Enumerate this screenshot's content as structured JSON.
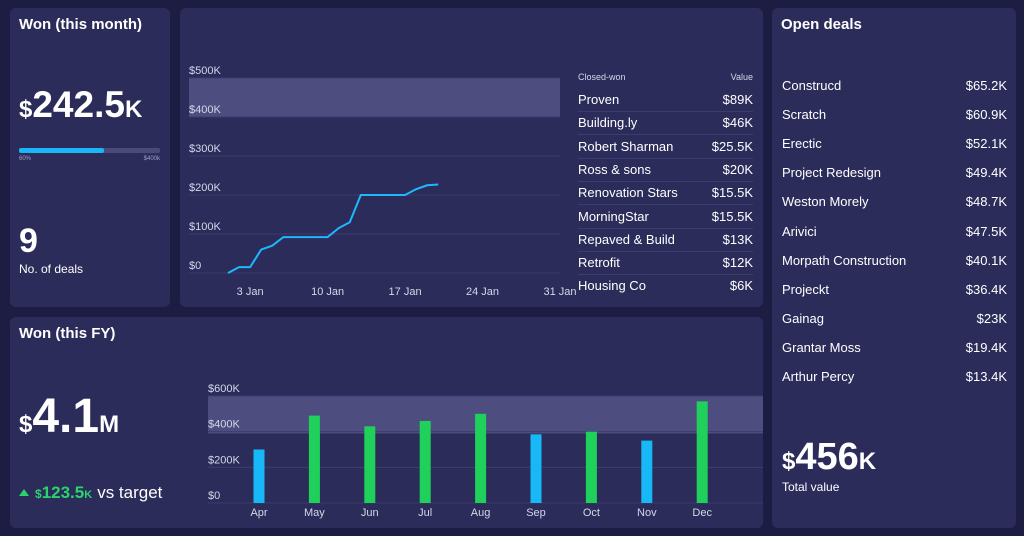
{
  "won_month": {
    "title": "Won (this month)",
    "currency": "$",
    "value": "242.5",
    "suffix": "K",
    "progress_label_left": "60%",
    "progress_label_right": "$400k",
    "progress_fraction": 0.6,
    "deals_count": "9",
    "deals_label": "No. of deals"
  },
  "month_table": {
    "col_name": "Closed-won",
    "col_value": "Value",
    "rows": [
      {
        "name": "Proven",
        "value": "$89K"
      },
      {
        "name": "Building.ly",
        "value": "$46K"
      },
      {
        "name": "Robert Sharman",
        "value": "$25.5K"
      },
      {
        "name": "Ross & sons",
        "value": "$20K"
      },
      {
        "name": "Renovation Stars",
        "value": "$15.5K"
      },
      {
        "name": "MorningStar",
        "value": "$15.5K"
      },
      {
        "name": "Repaved & Build",
        "value": "$13K"
      },
      {
        "name": "Retrofit",
        "value": "$12K"
      },
      {
        "name": "Housing Co",
        "value": "$6K"
      }
    ]
  },
  "won_fy": {
    "title": "Won (this FY)",
    "currency": "$",
    "value": "4.1",
    "suffix": "M",
    "delta_currency": "$",
    "delta_value": "123.5",
    "delta_suffix": "K",
    "delta_text": "vs target",
    "up_color": "#2bd36b"
  },
  "open_deals": {
    "title": "Open deals",
    "rows": [
      {
        "name": "Construcd",
        "value": "$65.2K"
      },
      {
        "name": "Scratch",
        "value": "$60.9K"
      },
      {
        "name": "Erectic",
        "value": "$52.1K"
      },
      {
        "name": "Project Redesign",
        "value": "$49.4K"
      },
      {
        "name": "Weston Morely",
        "value": "$48.7K"
      },
      {
        "name": "Arivici",
        "value": "$47.5K"
      },
      {
        "name": "Morpath Construction",
        "value": "$40.1K"
      },
      {
        "name": "Projeckt",
        "value": "$36.4K"
      },
      {
        "name": "Gainag",
        "value": "$23K"
      },
      {
        "name": "Grantar Moss",
        "value": "$19.4K"
      },
      {
        "name": "Arthur Percy",
        "value": "$13.4K"
      }
    ],
    "total_currency": "$",
    "total_value": "456",
    "total_suffix": "K",
    "total_label": "Total value"
  },
  "colors": {
    "background": "#1d1d44",
    "panel": "#2b2c5a",
    "line": "#1fb8ff",
    "bar_green": "#1fd15a",
    "bar_blue": "#17b8f5",
    "target_band": "#4d4e7f"
  },
  "chart_data": [
    {
      "type": "line",
      "title": "",
      "x_ticks": [
        "3 Jan",
        "10 Jan",
        "17 Jan",
        "24 Jan",
        "31 Jan"
      ],
      "y_ticks": [
        "$0",
        "$100K",
        "$200K",
        "$300K",
        "$400K",
        "$500K"
      ],
      "ylim": [
        0,
        500000
      ],
      "xlim": [
        1,
        31
      ],
      "target_band": [
        400000,
        500000
      ],
      "series": [
        {
          "x": [
            1,
            2,
            3,
            4,
            5,
            6,
            7,
            8,
            9,
            10,
            11,
            12,
            13,
            14,
            15,
            16,
            17,
            18,
            19,
            20
          ],
          "y": [
            0,
            15000,
            15000,
            60000,
            70000,
            92000,
            92000,
            92000,
            92000,
            92000,
            115000,
            130000,
            200000,
            200000,
            200000,
            200000,
            200000,
            215000,
            225000,
            227000
          ]
        }
      ]
    },
    {
      "type": "bar",
      "title": "",
      "categories": [
        "Apr",
        "May",
        "Jun",
        "Jul",
        "Aug",
        "Sep",
        "Oct",
        "Nov",
        "Dec"
      ],
      "y_ticks": [
        "$0",
        "$200K",
        "$400K",
        "$600K"
      ],
      "ylim": [
        0,
        600000
      ],
      "target_band": [
        390000,
        600000
      ],
      "values": [
        300000,
        490000,
        430000,
        460000,
        500000,
        385000,
        400000,
        350000,
        570000
      ],
      "bar_colors": [
        "blue",
        "green",
        "green",
        "green",
        "green",
        "blue",
        "green",
        "blue",
        "green"
      ]
    }
  ]
}
